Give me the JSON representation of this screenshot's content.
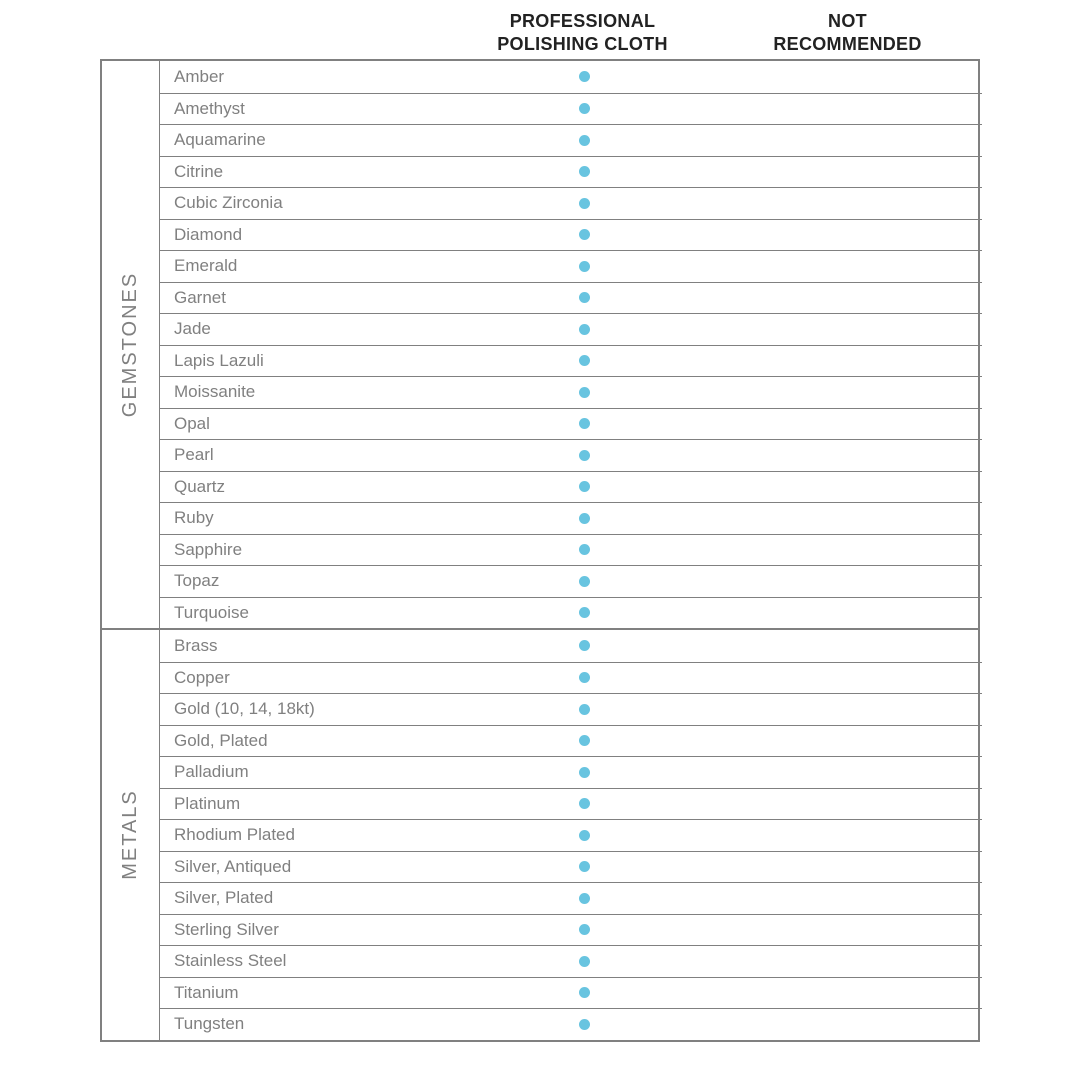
{
  "columns": [
    {
      "label_line1": "PROFESSIONAL",
      "label_line2": "POLISHING CLOTH"
    },
    {
      "label_line1": "NOT",
      "label_line2": "RECOMMENDED"
    }
  ],
  "dot_color": "#68c4e0",
  "border_color": "#808080",
  "text_muted": "#808080",
  "header_text_color": "#222222",
  "sections": [
    {
      "category": "GEMSTONES",
      "rows": [
        {
          "name": "Amber",
          "marks": [
            true,
            false
          ]
        },
        {
          "name": "Amethyst",
          "marks": [
            true,
            false
          ]
        },
        {
          "name": "Aquamarine",
          "marks": [
            true,
            false
          ]
        },
        {
          "name": "Citrine",
          "marks": [
            true,
            false
          ]
        },
        {
          "name": "Cubic Zirconia",
          "marks": [
            true,
            false
          ]
        },
        {
          "name": "Diamond",
          "marks": [
            true,
            false
          ]
        },
        {
          "name": "Emerald",
          "marks": [
            true,
            false
          ]
        },
        {
          "name": "Garnet",
          "marks": [
            true,
            false
          ]
        },
        {
          "name": "Jade",
          "marks": [
            true,
            false
          ]
        },
        {
          "name": "Lapis Lazuli",
          "marks": [
            true,
            false
          ]
        },
        {
          "name": "Moissanite",
          "marks": [
            true,
            false
          ]
        },
        {
          "name": "Opal",
          "marks": [
            true,
            false
          ]
        },
        {
          "name": "Pearl",
          "marks": [
            true,
            false
          ]
        },
        {
          "name": "Quartz",
          "marks": [
            true,
            false
          ]
        },
        {
          "name": "Ruby",
          "marks": [
            true,
            false
          ]
        },
        {
          "name": "Sapphire",
          "marks": [
            true,
            false
          ]
        },
        {
          "name": "Topaz",
          "marks": [
            true,
            false
          ]
        },
        {
          "name": "Turquoise",
          "marks": [
            true,
            false
          ]
        }
      ]
    },
    {
      "category": "METALS",
      "rows": [
        {
          "name": "Brass",
          "marks": [
            true,
            false
          ]
        },
        {
          "name": "Copper",
          "marks": [
            true,
            false
          ]
        },
        {
          "name": "Gold (10, 14, 18kt)",
          "marks": [
            true,
            false
          ]
        },
        {
          "name": "Gold, Plated",
          "marks": [
            true,
            false
          ]
        },
        {
          "name": "Palladium",
          "marks": [
            true,
            false
          ]
        },
        {
          "name": "Platinum",
          "marks": [
            true,
            false
          ]
        },
        {
          "name": "Rhodium Plated",
          "marks": [
            true,
            false
          ]
        },
        {
          "name": "Silver, Antiqued",
          "marks": [
            true,
            false
          ]
        },
        {
          "name": "Silver, Plated",
          "marks": [
            true,
            false
          ]
        },
        {
          "name": "Sterling Silver",
          "marks": [
            true,
            false
          ]
        },
        {
          "name": "Stainless Steel",
          "marks": [
            true,
            false
          ]
        },
        {
          "name": "Titanium",
          "marks": [
            true,
            false
          ]
        },
        {
          "name": "Tungsten",
          "marks": [
            true,
            false
          ]
        }
      ]
    }
  ]
}
